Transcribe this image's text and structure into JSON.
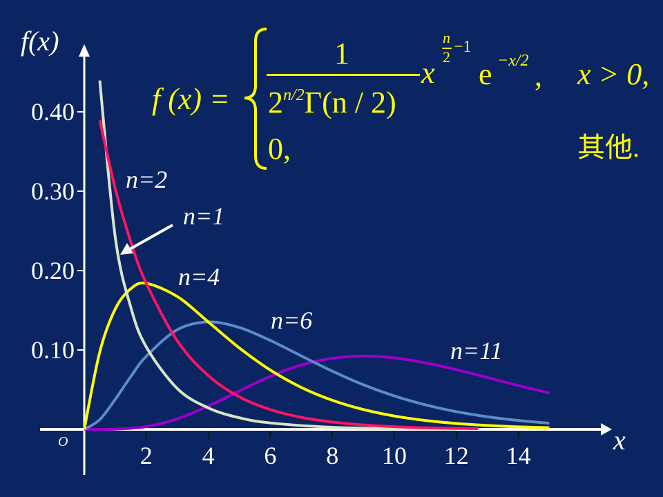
{
  "chart_data": {
    "type": "line",
    "title": "",
    "ylabel": "f(x)",
    "xlabel": "x",
    "origin_label": "O",
    "xlim": [
      0,
      15.5
    ],
    "ylim": [
      0,
      0.46
    ],
    "xticks": [
      2,
      4,
      6,
      8,
      10,
      12,
      14
    ],
    "yticks": [
      0.1,
      0.2,
      0.3,
      0.4
    ],
    "ytick_labels": [
      "0.10",
      "0.20",
      "0.30",
      "0.40"
    ],
    "grid": false,
    "series": [
      {
        "name": "n=1",
        "color": "#d8e6c6",
        "x": [
          0.5,
          1,
          1.5,
          2,
          3,
          4,
          5,
          6,
          8,
          10,
          12
        ],
        "y": [
          0.4394,
          0.242,
          0.1539,
          0.1038,
          0.0514,
          0.027,
          0.0146,
          0.0081,
          0.0026,
          0.0009,
          0.0003
        ]
      },
      {
        "name": "n=2",
        "color": "#ff1464",
        "x": [
          0.5,
          1,
          1.5,
          2,
          3,
          4,
          5,
          6,
          7,
          8,
          9,
          10,
          11,
          12,
          12.7
        ],
        "y": [
          0.3894,
          0.3033,
          0.2362,
          0.1839,
          0.1116,
          0.0677,
          0.041,
          0.0249,
          0.0151,
          0.0092,
          0.0056,
          0.0034,
          0.002,
          0.0012,
          0.0009
        ]
      },
      {
        "name": "n=4",
        "color": "#ffff00",
        "x": [
          0,
          0.5,
          1,
          1.5,
          2,
          3,
          4,
          5,
          6,
          7,
          8,
          9,
          10,
          11,
          12,
          13,
          14,
          15
        ],
        "y": [
          0,
          0.0974,
          0.1516,
          0.1771,
          0.1839,
          0.1673,
          0.1353,
          0.1026,
          0.0747,
          0.0528,
          0.0366,
          0.025,
          0.0168,
          0.0112,
          0.0074,
          0.0049,
          0.0032,
          0.0021
        ]
      },
      {
        "name": "n=6",
        "color": "#5a8cc8",
        "x": [
          0,
          0.5,
          1,
          1.5,
          2,
          3,
          4,
          5,
          6,
          7,
          8,
          9,
          10,
          11,
          12,
          13,
          14,
          15
        ],
        "y": [
          0,
          0.0122,
          0.0379,
          0.0664,
          0.092,
          0.1255,
          0.1353,
          0.1283,
          0.112,
          0.0925,
          0.0733,
          0.0562,
          0.0421,
          0.0309,
          0.0223,
          0.0159,
          0.0112,
          0.0078
        ]
      },
      {
        "name": "n=11",
        "color": "#9a00cc",
        "x": [
          0,
          1,
          2,
          3,
          4,
          5,
          6,
          7,
          8,
          9,
          10,
          11,
          12,
          13,
          14,
          15
        ],
        "y": [
          0,
          0.0003,
          0.0035,
          0.0132,
          0.0293,
          0.0484,
          0.0667,
          0.081,
          0.0895,
          0.0923,
          0.09,
          0.0838,
          0.0752,
          0.0653,
          0.0552,
          0.0458
        ]
      }
    ],
    "annotations": [
      {
        "text": "n=2",
        "series": "n=2"
      },
      {
        "text": "n=1",
        "series": "n=1",
        "arrow": true
      },
      {
        "text": "n=4",
        "series": "n=4"
      },
      {
        "text": "n=6",
        "series": "n=6"
      },
      {
        "text": "n=11",
        "series": "n=11"
      }
    ]
  },
  "formula": {
    "lhs": "f (x) =",
    "numerator": "1",
    "denominator_base": "2",
    "denominator_exp": "n/2",
    "denominator_gamma": "Γ(n / 2)",
    "power_base": "x",
    "power_exp_num": "n",
    "power_exp_den": "2",
    "power_exp_tail": "−1",
    "exp_base": "e",
    "exp_exp": "−x/2",
    "case1_comma": ",",
    "case1_cond": "x > 0,",
    "case2_value": "0,",
    "case2_cond": "其他."
  },
  "colors": {
    "background": "#0b2462",
    "axis": "#ffffff",
    "formula": "#ffff00"
  }
}
